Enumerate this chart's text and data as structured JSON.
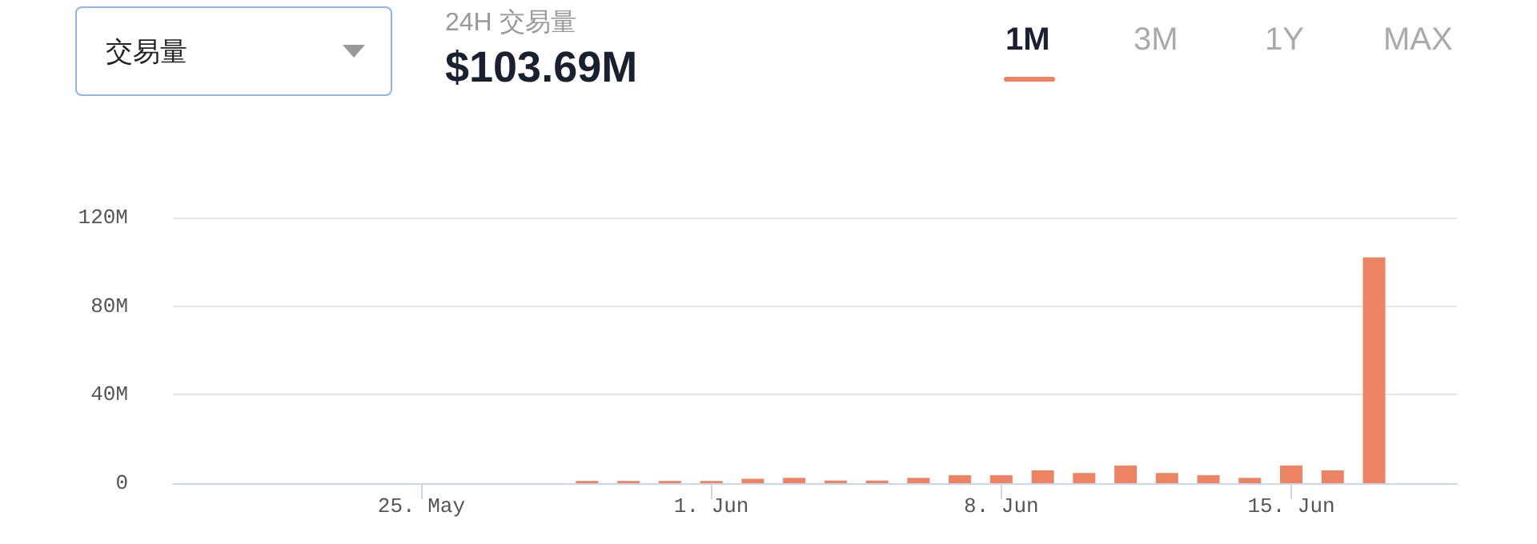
{
  "chart_data": {
    "type": "bar",
    "title": "$103.69M",
    "subtitle": "24H 交易量",
    "annotations": [
      "交易量",
      "1M",
      "3M",
      "1Y",
      "MAX"
    ],
    "x": [
      "--05-29",
      "--05-30",
      "--05-31",
      "--06-01",
      "--06-02",
      "--06-03",
      "--06-04",
      "--06-05",
      "--06-06",
      "--06-07",
      "--06-08",
      "--06-09",
      "--06-10",
      "--06-11",
      "--06-12",
      "--06-13",
      "--06-14",
      "--06-15",
      "--06-16",
      "--06-17"
    ],
    "values": [
      1,
      1,
      1,
      1,
      2,
      2.4,
      1.2,
      1.2,
      2.4,
      3.6,
      3.6,
      5.8,
      4.6,
      8,
      4.6,
      3.6,
      2.4,
      8,
      5.8,
      102
    ],
    "color": "#ec8464",
    "xlim": [
      "--05-19",
      "--06-19"
    ],
    "xticks": [
      {
        "value": "--05-25",
        "label": "25. May"
      },
      {
        "value": "--06-01",
        "label": "1. Jun"
      },
      {
        "value": "--06-08",
        "label": "8. Jun"
      },
      {
        "value": "--06-15",
        "label": "15. Jun"
      }
    ],
    "ylim": [
      0,
      120
    ],
    "yticks": [
      {
        "value": 0,
        "label": "0"
      },
      {
        "value": 40,
        "label": "40M"
      },
      {
        "value": 80,
        "label": "80M"
      },
      {
        "value": 120,
        "label": "120M"
      }
    ],
    "grid": "y"
  }
}
